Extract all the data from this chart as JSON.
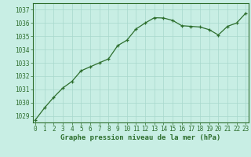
{
  "x": [
    0,
    1,
    2,
    3,
    4,
    5,
    6,
    7,
    8,
    9,
    10,
    11,
    12,
    13,
    14,
    15,
    16,
    17,
    18,
    19,
    20,
    21,
    22,
    23
  ],
  "y": [
    1028.7,
    1029.6,
    1030.4,
    1031.1,
    1031.6,
    1032.4,
    1032.7,
    1033.0,
    1033.3,
    1034.3,
    1034.7,
    1035.55,
    1036.0,
    1036.4,
    1036.38,
    1036.2,
    1035.8,
    1035.75,
    1035.7,
    1035.5,
    1035.1,
    1035.75,
    1036.0,
    1036.75
  ],
  "line_color": "#2d6e2d",
  "marker_color": "#2d6e2d",
  "bg_color": "#c8eee4",
  "grid_color": "#a8d8cc",
  "xlabel": "Graphe pression niveau de la mer (hPa)",
  "xlabel_color": "#2d6e2d",
  "tick_color": "#2d6e2d",
  "spine_color": "#2d6e2d",
  "ylim_min": 1028.5,
  "ylim_max": 1037.5,
  "xlim_min": -0.3,
  "xlim_max": 23.3,
  "yticks": [
    1029,
    1030,
    1031,
    1032,
    1033,
    1034,
    1035,
    1036,
    1037
  ],
  "xticks": [
    0,
    1,
    2,
    3,
    4,
    5,
    6,
    7,
    8,
    9,
    10,
    11,
    12,
    13,
    14,
    15,
    16,
    17,
    18,
    19,
    20,
    21,
    22,
    23
  ],
  "tick_fontsize": 5.5,
  "xlabel_fontsize": 6.5,
  "linewidth": 0.9,
  "markersize": 3.5,
  "markeredgewidth": 0.9
}
